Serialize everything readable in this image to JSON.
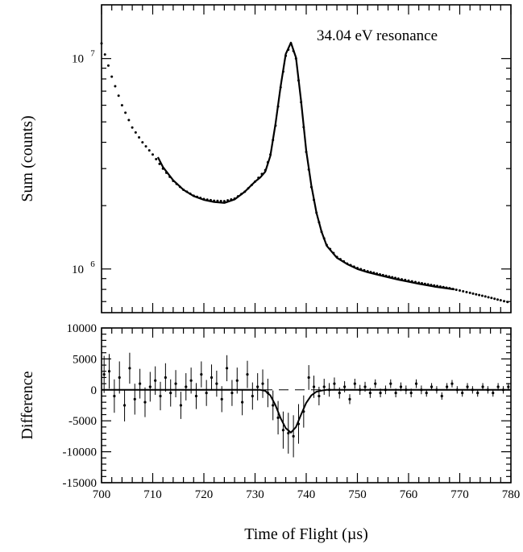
{
  "chart_data": [
    {
      "type": "line",
      "annotation": "34.04 eV resonance",
      "ylabel": "Sum (counts)",
      "xlabel": "",
      "yscale": "log",
      "xlim": [
        700,
        780
      ],
      "ylim": [
        620000,
        18000000
      ],
      "yticks": [
        {
          "value": 1000000,
          "base": "10",
          "exp": "6"
        },
        {
          "value": 10000000,
          "base": "10",
          "exp": "7"
        }
      ],
      "grid": false,
      "series": [
        {
          "style": "dotted",
          "x": [
            700,
            702,
            704,
            706,
            708,
            710,
            712,
            714,
            716,
            718,
            720,
            722,
            724,
            726,
            728,
            730,
            732,
            733,
            734,
            735,
            736,
            737,
            738,
            739,
            740,
            741,
            742,
            743,
            744,
            746,
            748,
            750,
            752,
            755,
            758,
            760,
            762,
            765,
            768,
            770,
            772,
            775,
            778,
            780
          ],
          "y": [
            11800000,
            8200000,
            6000000,
            4700000,
            4000000,
            3500000,
            3000000,
            2620000,
            2380000,
            2230000,
            2150000,
            2110000,
            2100000,
            2160000,
            2330000,
            2600000,
            2950000,
            3500000,
            4800000,
            7300000,
            10300000,
            11800000,
            10000000,
            6200000,
            3600000,
            2450000,
            1850000,
            1500000,
            1300000,
            1140000,
            1060000,
            1010000,
            975000,
            935000,
            900000,
            880000,
            860000,
            835000,
            810000,
            790000,
            770000,
            740000,
            710000,
            690000
          ]
        },
        {
          "style": "solid",
          "x": [
            711,
            712,
            714,
            716,
            718,
            720,
            722,
            724,
            726,
            728,
            730,
            731,
            732,
            733,
            734,
            735,
            736,
            737,
            738,
            739,
            740,
            741,
            742,
            743,
            744,
            746,
            748,
            750,
            752,
            755,
            758,
            760,
            762,
            765,
            769
          ],
          "y": [
            3400000,
            3050000,
            2640000,
            2380000,
            2220000,
            2130000,
            2080000,
            2060000,
            2140000,
            2330000,
            2600000,
            2720000,
            2900000,
            3450000,
            4900000,
            7400000,
            10500000,
            11900000,
            10100000,
            6300000,
            3650000,
            2500000,
            1850000,
            1500000,
            1290000,
            1130000,
            1055000,
            1000000,
            965000,
            925000,
            890000,
            870000,
            850000,
            825000,
            800000
          ]
        }
      ]
    },
    {
      "type": "scatter",
      "ylabel": "Difference",
      "xlabel": "Time of Flight (µs)",
      "xlim": [
        700,
        780
      ],
      "ylim": [
        -15000,
        10000
      ],
      "xticks": [
        "700",
        "710",
        "720",
        "730",
        "740",
        "750",
        "760",
        "770",
        "780"
      ],
      "yticks": [
        "10000",
        "5000",
        "0",
        "-5000",
        "-10000",
        "-15000"
      ],
      "grid": false,
      "zero_line": "dashed",
      "series": [
        {
          "style": "points-with-error-bars",
          "x": [
            700.5,
            701.5,
            702.5,
            703.5,
            704.5,
            705.5,
            706.5,
            707.5,
            708.5,
            709.5,
            710.5,
            711.5,
            712.5,
            713.5,
            714.5,
            715.5,
            716.5,
            717.5,
            718.5,
            719.5,
            720.5,
            721.5,
            722.5,
            723.5,
            724.5,
            725.5,
            726.5,
            727.5,
            728.5,
            729.5,
            730.5,
            731.5,
            732.5,
            733.5,
            734.5,
            735.5,
            736.5,
            737.5,
            738.5,
            739.5,
            740.5,
            741.5,
            742.5,
            743.5,
            744.5,
            745.5,
            746.5,
            747.5,
            748.5,
            749.5,
            750.5,
            751.5,
            752.5,
            753.5,
            754.5,
            755.5,
            756.5,
            757.5,
            758.5,
            759.5,
            760.5,
            761.5,
            762.5,
            763.5,
            764.5,
            765.5,
            766.5,
            767.5,
            768.5,
            769.5,
            770.5,
            771.5,
            772.5,
            773.5,
            774.5,
            775.5,
            776.5,
            777.5,
            778.5,
            779.5
          ],
          "y": [
            2500,
            3000,
            -1000,
            2000,
            -2500,
            3500,
            -1500,
            1000,
            -2000,
            500,
            1500,
            -1000,
            2000,
            -500,
            1000,
            -2500,
            500,
            1500,
            -1000,
            2500,
            -500,
            2000,
            1000,
            -1500,
            3500,
            -500,
            1500,
            -2000,
            2500,
            -1000,
            500,
            1000,
            -500,
            -2500,
            -4500,
            -6500,
            -7000,
            -7500,
            -5500,
            -3500,
            2000,
            500,
            -1000,
            500,
            0,
            1000,
            -500,
            500,
            -1500,
            1000,
            0,
            500,
            -500,
            1000,
            -500,
            0,
            1000,
            -500,
            500,
            0,
            -500,
            1000,
            0,
            -500,
            500,
            0,
            -1000,
            500,
            1000,
            0,
            -500,
            500,
            0,
            -500,
            500,
            0,
            -500,
            500,
            0,
            500
          ],
          "err": [
            3000,
            2800,
            2700,
            2600,
            2600,
            2500,
            2500,
            2400,
            2400,
            2400,
            2300,
            2300,
            2300,
            2200,
            2200,
            2200,
            2200,
            2100,
            2100,
            2100,
            2100,
            2100,
            2100,
            2100,
            2100,
            2100,
            2100,
            2100,
            2200,
            2200,
            2200,
            2300,
            2300,
            2400,
            2700,
            3000,
            3300,
            3400,
            3200,
            2600,
            2000,
            1800,
            1500,
            1300,
            1100,
            1000,
            900,
            900,
            800,
            800,
            800,
            800,
            800,
            700,
            700,
            700,
            700,
            700,
            700,
            700,
            700,
            700,
            700,
            600,
            600,
            600,
            600,
            600,
            600,
            600,
            600,
            600,
            600,
            600,
            600,
            600,
            600,
            600,
            600,
            600
          ]
        },
        {
          "style": "solid",
          "x": [
            700,
            710,
            720,
            731,
            732,
            733,
            734,
            735,
            736,
            737,
            738,
            739,
            740,
            741,
            742,
            743,
            744,
            746,
            750,
            760,
            780
          ],
          "y": [
            0,
            0,
            0,
            0,
            -150,
            -900,
            -2500,
            -4600,
            -6200,
            -6900,
            -6000,
            -4000,
            -2100,
            -900,
            -300,
            -100,
            0,
            0,
            0,
            0,
            0
          ]
        }
      ]
    }
  ]
}
